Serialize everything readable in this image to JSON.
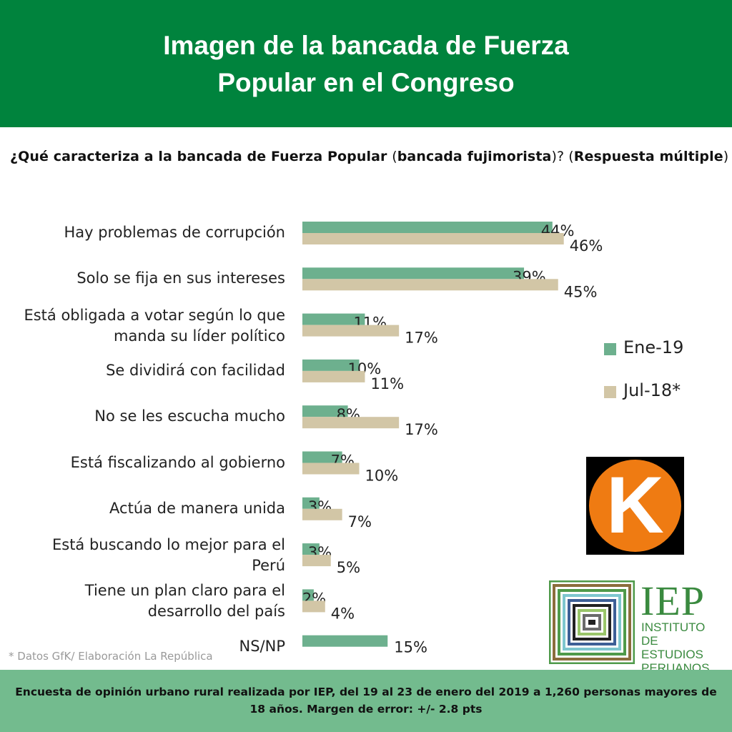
{
  "header": {
    "title": "Imagen de la bancada de Fuerza\nPopular en el Congreso"
  },
  "question": {
    "part1": "¿Qué caracteriza a la bancada de Fuerza Popular ",
    "part2": "(",
    "part3": "bancada fujimorista",
    "part4": ")? (",
    "part5": "Respuesta múltiple",
    "part6": ")"
  },
  "legend": [
    {
      "label": "Ene-19",
      "color": "#6db08e"
    },
    {
      "label": "Jul-18*",
      "color": "#d2c6a6"
    }
  ],
  "logos": {
    "k_letter": "K",
    "iep_abbr": "IEP",
    "iep_name": "INSTITUTO DE\nESTUDIOS\nPERUANOS"
  },
  "source_note": "* Datos GfK/ Elaboración La República",
  "footer": {
    "text": "Encuesta de opinión urbano rural realizada por IEP, del 19 al 23 de enero del 2019 a 1,260 personas mayores de 18 años. Margen de error: +/- 2.8 pts"
  },
  "chart_data": {
    "type": "bar",
    "orientation": "horizontal",
    "unit": "%",
    "xlim": [
      0,
      50
    ],
    "grid": false,
    "legend_position": "right",
    "categories": [
      "Hay problemas de corrupción",
      "Solo se fija en sus intereses",
      "Está obligada a votar según lo que\nmanda su líder político",
      "Se dividirá con facilidad",
      "No se les escucha mucho",
      "Está fiscalizando al gobierno",
      "Actúa de manera unida",
      "Está buscando lo mejor para el\nPerú",
      "Tiene un plan claro para el\ndesarrollo del país",
      "NS/NP"
    ],
    "series": [
      {
        "name": "Ene-19",
        "color": "#6db08e",
        "values": [
          44,
          39,
          11,
          10,
          8,
          7,
          3,
          3,
          2,
          15
        ],
        "labels": [
          "44%",
          "39%",
          "11%",
          "10%",
          "8%",
          "7%",
          "3%",
          "3%",
          "2%",
          "15%"
        ]
      },
      {
        "name": "Jul-18*",
        "color": "#d2c6a6",
        "values": [
          46,
          45,
          17,
          11,
          17,
          10,
          7,
          5,
          4,
          null
        ],
        "labels": [
          "46%",
          "45%",
          "17%",
          "11%",
          "17%",
          "10%",
          "7%",
          "5%",
          "4%",
          ""
        ]
      }
    ]
  }
}
